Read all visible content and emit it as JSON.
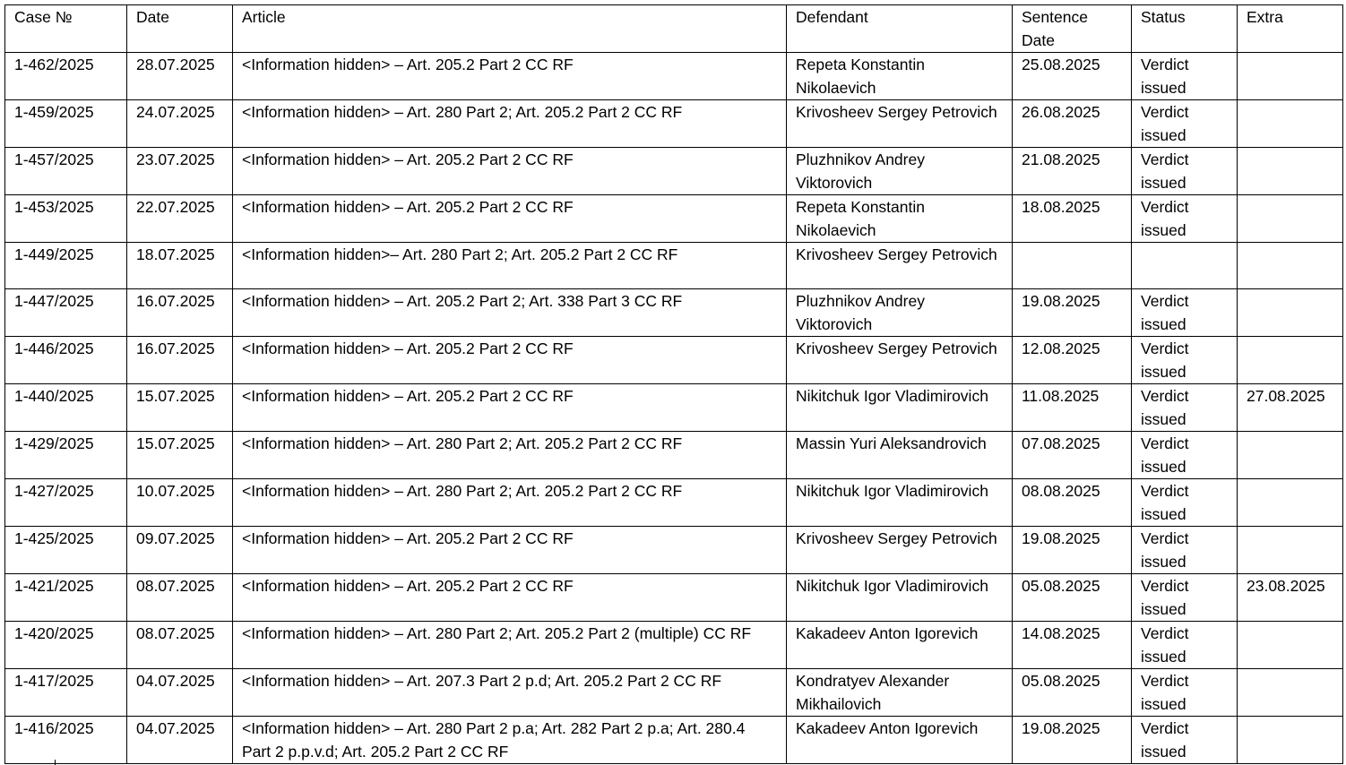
{
  "headers": [
    "Case №",
    "Date",
    "Article",
    "Defendant",
    "Sentence Date",
    "Status",
    "Extra"
  ],
  "rows": [
    [
      "1-462/2025",
      "28.07.2025",
      "<Information hidden> – Art. 205.2 Part 2 CC RF",
      "Repeta Konstantin Nikolaevich",
      "25.08.2025",
      "Verdict issued",
      ""
    ],
    [
      "1-459/2025",
      "24.07.2025",
      "<Information hidden> – Art. 280 Part 2; Art. 205.2 Part 2 CC RF",
      "Krivosheev Sergey Petrovich",
      "26.08.2025",
      "Verdict issued",
      ""
    ],
    [
      "1-457/2025",
      "23.07.2025",
      "<Information hidden> – Art. 205.2 Part 2 CC RF",
      "Pluzhnikov Andrey Viktorovich",
      "21.08.2025",
      "Verdict issued",
      ""
    ],
    [
      "1-453/2025",
      "22.07.2025",
      "<Information hidden> – Art. 205.2 Part 2 CC RF",
      "Repeta Konstantin Nikolaevich",
      "18.08.2025",
      "Verdict issued",
      ""
    ],
    [
      "1-449/2025",
      "18.07.2025",
      "<Information hidden>– Art. 280 Part 2; Art. 205.2 Part 2 CC RF",
      "Krivosheev Sergey Petrovich",
      "",
      "",
      ""
    ],
    [
      "1-447/2025",
      "16.07.2025",
      "<Information hidden> – Art. 205.2 Part 2; Art. 338 Part 3 CC RF",
      "Pluzhnikov Andrey Viktorovich",
      "19.08.2025",
      "Verdict issued",
      ""
    ],
    [
      "1-446/2025",
      "16.07.2025",
      "<Information hidden> – Art. 205.2 Part 2 CC RF",
      "Krivosheev Sergey Petrovich",
      "12.08.2025",
      "Verdict issued",
      ""
    ],
    [
      "1-440/2025",
      "15.07.2025",
      "<Information hidden> – Art. 205.2 Part 2 CC RF",
      "Nikitchuk Igor Vladimirovich",
      "11.08.2025",
      "Verdict issued",
      "27.08.2025"
    ],
    [
      "1-429/2025",
      "15.07.2025",
      "<Information hidden> – Art. 280 Part 2; Art. 205.2 Part 2 CC RF",
      "Massin Yuri Aleksandrovich",
      "07.08.2025",
      "Verdict issued",
      ""
    ],
    [
      "1-427/2025",
      "10.07.2025",
      "<Information hidden> – Art. 280 Part 2; Art. 205.2 Part 2 CC RF",
      "Nikitchuk Igor Vladimirovich",
      "08.08.2025",
      "Verdict issued",
      ""
    ],
    [
      "1-425/2025",
      "09.07.2025",
      "<Information hidden> – Art. 205.2 Part 2 CC RF",
      "Krivosheev Sergey Petrovich",
      "19.08.2025",
      "Verdict issued",
      ""
    ],
    [
      "1-421/2025",
      "08.07.2025",
      "<Information hidden> – Art. 205.2 Part 2 CC RF",
      "Nikitchuk Igor Vladimirovich",
      "05.08.2025",
      "Verdict issued",
      "23.08.2025"
    ],
    [
      "1-420/2025",
      "08.07.2025",
      "<Information hidden> – Art. 280 Part 2; Art. 205.2 Part 2 (multiple) CC RF",
      "Kakadeev Anton Igorevich",
      "14.08.2025",
      "Verdict issued",
      ""
    ],
    [
      "1-417/2025",
      "04.07.2025",
      "<Information hidden> – Art. 207.3 Part 2 p.d; Art. 205.2 Part 2 CC RF",
      "Kondratyev Alexander Mikhailovich",
      "05.08.2025",
      "Verdict issued",
      ""
    ],
    [
      "1-416/2025",
      "04.07.2025",
      "<Information hidden> – Art. 280 Part 2 p.a; Art. 282 Part 2 p.a; Art. 280.4 Part 2 p.p.v.d; Art. 205.2 Part 2 CC RF",
      "Kakadeev Anton Igorevich",
      "19.08.2025",
      "Verdict issued",
      ""
    ]
  ]
}
